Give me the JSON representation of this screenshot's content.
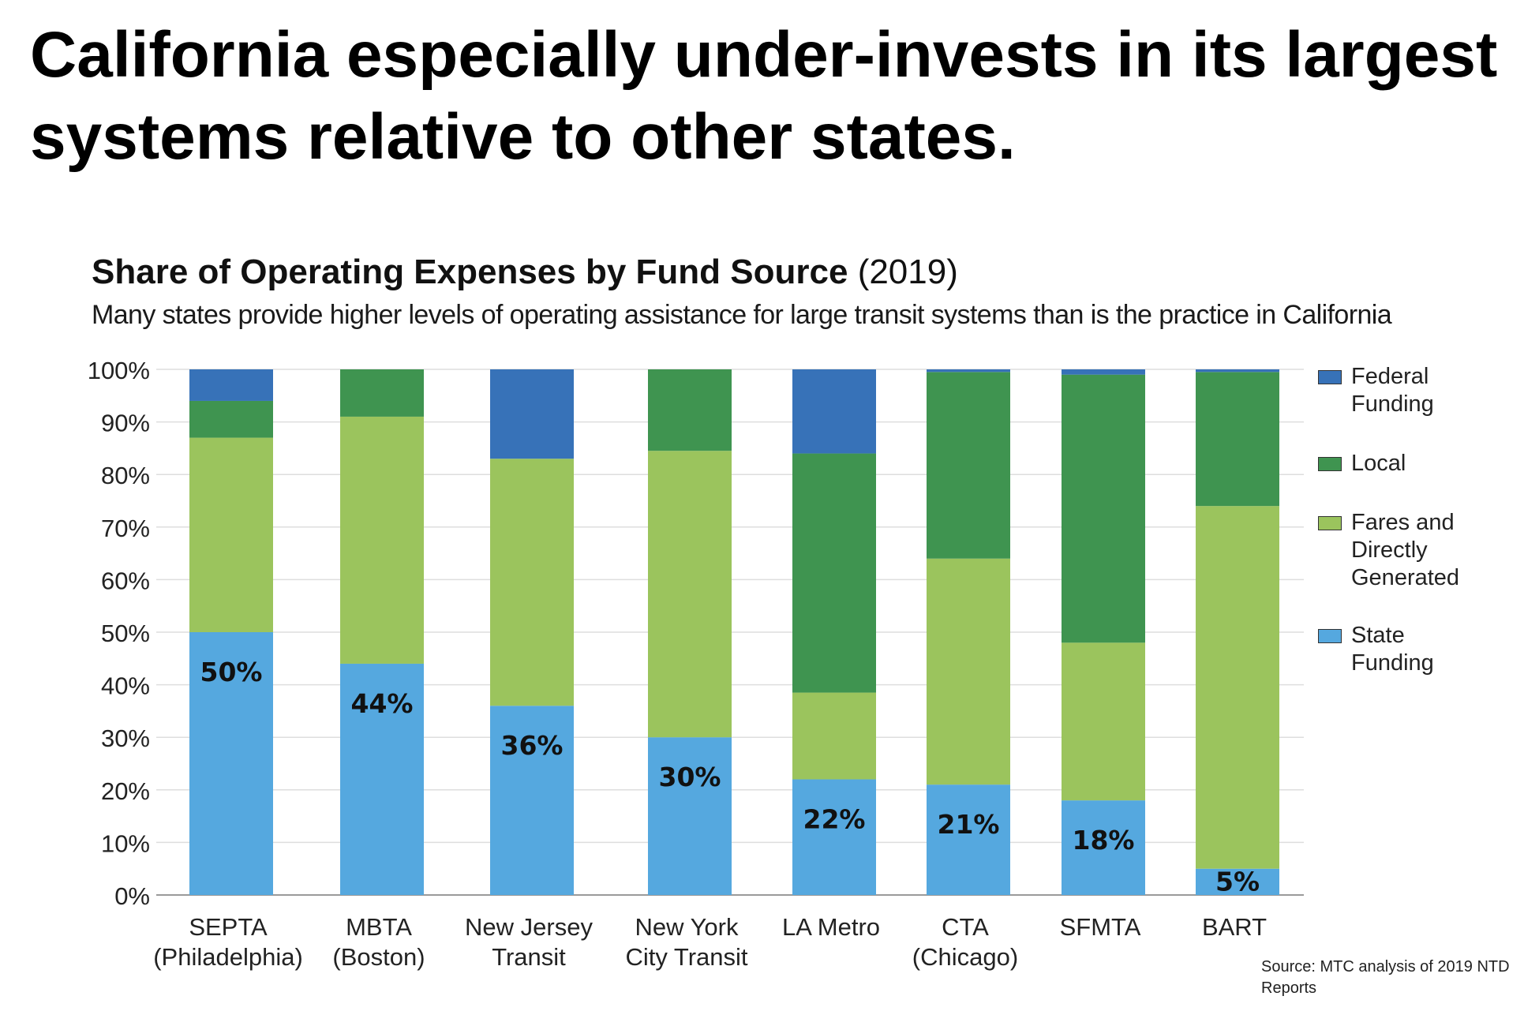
{
  "headline": {
    "line1": "California especially under-invests in its largest",
    "line2": "systems relative to other states."
  },
  "chart_data": {
    "type": "bar",
    "stacked": true,
    "title": "Share of Operating Expenses by Fund Source",
    "title_year": "(2019)",
    "subtitle": "Many states provide higher levels of operating assistance for large transit systems than is the practice in California",
    "categories": [
      [
        "SEPTA",
        "(Philadelphia)"
      ],
      [
        "MBTA",
        "(Boston)"
      ],
      [
        "New Jersey",
        "Transit"
      ],
      [
        "New York",
        "City Transit"
      ],
      [
        "LA Metro"
      ],
      [
        "CTA",
        "(Chicago)"
      ],
      [
        "SFMTA"
      ],
      [
        "BART"
      ]
    ],
    "series": [
      {
        "name": "State Funding",
        "color": "#55a8df",
        "values": [
          50,
          44,
          36,
          30,
          22,
          21,
          18,
          5
        ]
      },
      {
        "name": "Fares and Directly Generated",
        "color": "#9bc45d",
        "values": [
          37,
          47,
          47,
          54.5,
          16.5,
          43,
          30,
          69
        ]
      },
      {
        "name": "Local",
        "color": "#3f9450",
        "values": [
          7,
          9,
          0,
          15.5,
          45.5,
          35.5,
          51,
          25.5
        ]
      },
      {
        "name": "Federal Funding",
        "color": "#3772b8",
        "values": [
          6,
          0,
          17,
          0,
          16,
          0.5,
          1,
          0.5
        ]
      }
    ],
    "data_labels": [
      "50%",
      "44%",
      "36%",
      "30%",
      "22%",
      "21%",
      "18%",
      "5%"
    ],
    "yticks": [
      "0%",
      "10%",
      "20%",
      "30%",
      "40%",
      "50%",
      "60%",
      "70%",
      "80%",
      "90%",
      "100%"
    ],
    "ylim": [
      0,
      100
    ],
    "grid": true,
    "legend": [
      {
        "label": "Federal Funding",
        "lines": [
          "Federal",
          "Funding"
        ],
        "color": "#3772b8"
      },
      {
        "label": "Local",
        "lines": [
          "Local"
        ],
        "color": "#3f9450"
      },
      {
        "label": "Fares and Directly Generated",
        "lines": [
          "Fares and",
          "Directly",
          "Generated"
        ],
        "color": "#9bc45d"
      },
      {
        "label": "State Funding",
        "lines": [
          "State",
          "Funding"
        ],
        "color": "#55a8df"
      }
    ],
    "source": "Source: MTC analysis of 2019 NTD Reports"
  }
}
